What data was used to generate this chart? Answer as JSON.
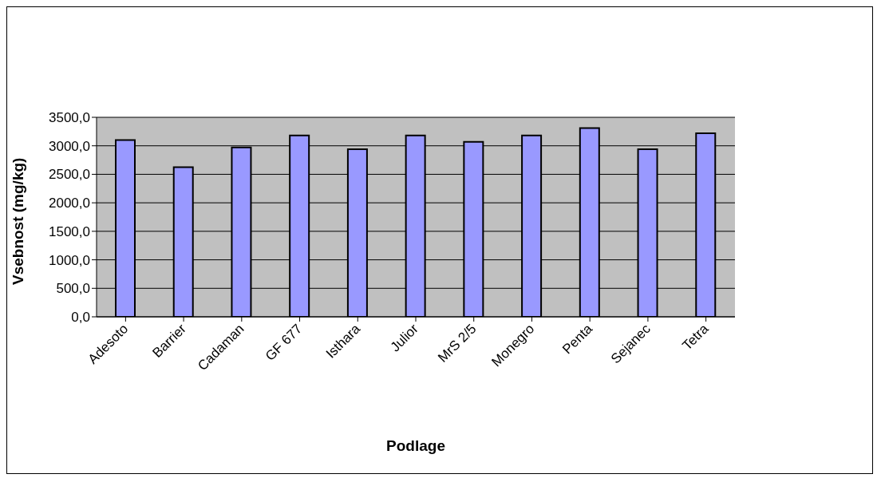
{
  "chart_data": {
    "type": "bar",
    "xlabel": "Podlage",
    "ylabel": "Vsebnost (mg/kg)",
    "categories": [
      "Adesoto",
      "Barrier",
      "Cadaman",
      "GF 677",
      "Isthara",
      "Julior",
      "MrS 2/5",
      "Monegro",
      "Penta",
      "Sejanec",
      "Tetra"
    ],
    "values": [
      3100,
      2625,
      2970,
      3180,
      2940,
      3180,
      3070,
      3180,
      3310,
      2940,
      3220
    ],
    "color": "#9999ff",
    "ylim": [
      0,
      3500
    ],
    "yticks": [
      {
        "value": 0,
        "label": "0,0"
      },
      {
        "value": 500,
        "label": "500,0"
      },
      {
        "value": 1000,
        "label": "1000,0"
      },
      {
        "value": 1500,
        "label": "1500,0"
      },
      {
        "value": 2000,
        "label": "2000,0"
      },
      {
        "value": 2500,
        "label": "2500,0"
      },
      {
        "value": 3000,
        "label": "3000,0"
      },
      {
        "value": 3500,
        "label": "3500,0"
      }
    ],
    "grid": "y",
    "legend": false
  }
}
